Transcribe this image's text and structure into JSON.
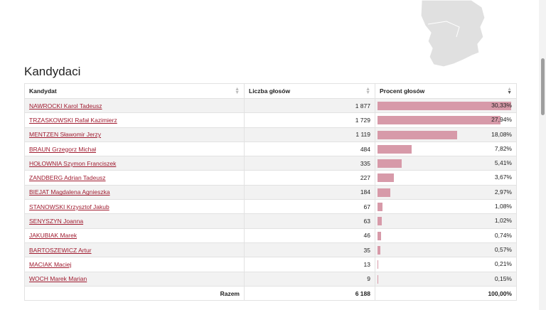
{
  "section": {
    "title": "Kandydaci"
  },
  "table": {
    "headers": [
      "Kandydat",
      "Liczba głosów",
      "Procent głosów"
    ],
    "rows": [
      {
        "name": "NAWROCKI Karol Tadeusz",
        "votes": "1 877",
        "pct": "30,33%",
        "share": 30.33
      },
      {
        "name": "TRZASKOWSKI Rafał Kazimierz",
        "votes": "1 729",
        "pct": "27,94%",
        "share": 27.94
      },
      {
        "name": "MENTZEN Sławomir Jerzy",
        "votes": "1 119",
        "pct": "18,08%",
        "share": 18.08
      },
      {
        "name": "BRAUN Grzegorz Michał",
        "votes": "484",
        "pct": "7,82%",
        "share": 7.82
      },
      {
        "name": "HOŁOWNIA Szymon Franciszek",
        "votes": "335",
        "pct": "5,41%",
        "share": 5.41
      },
      {
        "name": "ZANDBERG Adrian Tadeusz",
        "votes": "227",
        "pct": "3,67%",
        "share": 3.67
      },
      {
        "name": "BIEJAT Magdalena Agnieszka",
        "votes": "184",
        "pct": "2,97%",
        "share": 2.97
      },
      {
        "name": "STANOWSKI Krzysztof Jakub",
        "votes": "67",
        "pct": "1,08%",
        "share": 1.08
      },
      {
        "name": "SENYSZYN Joanna",
        "votes": "63",
        "pct": "1,02%",
        "share": 1.02
      },
      {
        "name": "JAKUBIAK Marek",
        "votes": "46",
        "pct": "0,74%",
        "share": 0.74
      },
      {
        "name": "BARTOSZEWICZ Artur",
        "votes": "35",
        "pct": "0,57%",
        "share": 0.57
      },
      {
        "name": "MACIAK Maciej",
        "votes": "13",
        "pct": "0,21%",
        "share": 0.21
      },
      {
        "name": "WOCH Marek Marian",
        "votes": "9",
        "pct": "0,15%",
        "share": 0.15
      }
    ],
    "total": {
      "label": "Razem",
      "votes": "6 188",
      "pct": "100,00%"
    }
  },
  "colors": {
    "bar": "#d79aa9",
    "link": "#a01c30",
    "map": "#e0e0e0"
  }
}
